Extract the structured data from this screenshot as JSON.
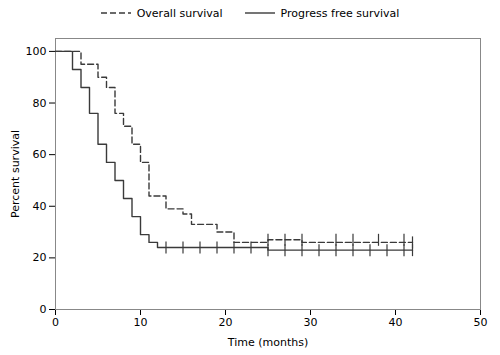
{
  "chart_data": {
    "type": "line",
    "xlabel": "Time (months)",
    "ylabel": "Percent survival",
    "xlim": [
      0,
      50
    ],
    "ylim": [
      0,
      105
    ],
    "xticks": [
      0,
      10,
      20,
      30,
      40,
      50
    ],
    "yticks": [
      0,
      20,
      40,
      60,
      80,
      100
    ],
    "legend": "top",
    "series": [
      {
        "name": "Overall survival",
        "color": "#3a3a3a",
        "line_style": "dashed",
        "x": [
          0,
          3,
          3,
          5,
          5,
          6,
          6,
          7,
          7,
          8,
          8,
          9,
          9,
          10,
          10,
          11,
          11,
          13,
          13,
          15,
          15,
          16,
          16,
          19,
          19,
          21,
          21,
          25,
          25,
          27,
          27,
          29,
          29,
          42
        ],
        "values": [
          100,
          100,
          95,
          95,
          90,
          90,
          86,
          86,
          76,
          76,
          71,
          71,
          64,
          64,
          57,
          57,
          44,
          44,
          39,
          39,
          37,
          37,
          33,
          33,
          30,
          30,
          26,
          26,
          27,
          27,
          27,
          27,
          26,
          26
        ],
        "censor_x": [
          25,
          27,
          29,
          33,
          35,
          38,
          41,
          42
        ],
        "censor_y": [
          27,
          27,
          27,
          27,
          27,
          27,
          27,
          26
        ]
      },
      {
        "name": "Progress free survival",
        "color": "#3a3a3a",
        "line_style": "solid",
        "x": [
          0,
          2,
          2,
          3,
          3,
          4,
          4,
          5,
          5,
          6,
          6,
          7,
          7,
          8,
          8,
          9,
          9,
          10,
          10,
          11,
          11,
          12,
          12,
          13,
          13,
          25,
          25,
          26,
          26,
          27,
          27,
          42
        ],
        "values": [
          100,
          100,
          93,
          93,
          86,
          86,
          76,
          76,
          64,
          64,
          57,
          57,
          50,
          50,
          43,
          43,
          36,
          36,
          29,
          29,
          26,
          26,
          24,
          24,
          24,
          24,
          23,
          23,
          23,
          23,
          23,
          23
        ],
        "censor_x": [
          13,
          15,
          17,
          19,
          21,
          23,
          25,
          27,
          29,
          31,
          33,
          35,
          37,
          39,
          41,
          42
        ],
        "censor_y": [
          24,
          24,
          24,
          24,
          24,
          24,
          23,
          23,
          23,
          23,
          23,
          23,
          23,
          23,
          23,
          23
        ]
      }
    ]
  }
}
